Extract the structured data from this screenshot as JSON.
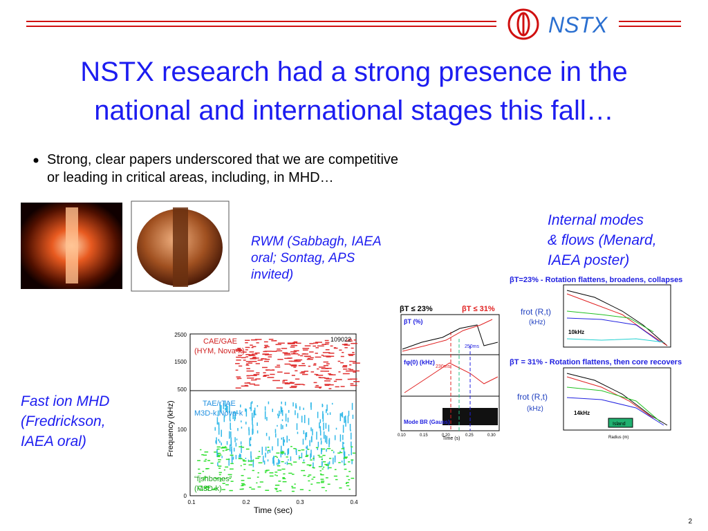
{
  "header": {
    "logo_text": "NSTX",
    "title_lines": [
      "NSTX research had a strong presence in the",
      "national and international stages this fall…"
    ]
  },
  "bullet": {
    "lines": [
      "Strong, clear papers underscored that we are competitive",
      "or leading in critical areas, including, in MHD…"
    ]
  },
  "captions": {
    "rwm": [
      "RWM (Sabbagh, IAEA",
      "oral; Sontag, APS",
      "invited)"
    ],
    "internal": [
      "Internal modes",
      "& flows (Menard,",
      "IAEA poster)"
    ],
    "fast_ion": [
      "Fast ion MHD",
      "(Fredrickson,",
      "IAEA oral)"
    ]
  },
  "spectrogram": {
    "y_axis": "Frequency (kHz)",
    "x_axis": "Time (sec)",
    "shot": "109022",
    "top_ticks": [
      "2500",
      "1500",
      "500"
    ],
    "bottom_ticks": [
      "100",
      "0"
    ],
    "xticks": [
      "0.1",
      "0.2",
      "0.3",
      "0.4"
    ],
    "annotations": [
      "CAE/GAE",
      "(HYM, Nova-k)",
      "TAE/rTAE",
      "M3D-k,Nova-k",
      "“fishbones”",
      "(M3D-k)"
    ]
  },
  "time_traces": {
    "labels": [
      "βT ≤ 23%",
      "βT ≤ 31%",
      "βT (%)",
      "fφ(0) (kHz)",
      "Mode BR (Gauss)",
      "230ms",
      "250ms",
      "Time (s)"
    ],
    "xticks": [
      "0.10",
      "0.15",
      "0.20",
      "0.25",
      "0.30"
    ]
  },
  "profiles": {
    "top_label": "βT=23% - Rotation flattens, broadens, collapses",
    "bottom_label": "βT = 31% - Rotation flattens, then core recovers",
    "axis_label": "frot (R,t)",
    "unit": "(kHz)",
    "top_note": "10kHz",
    "bottom_note": "14kHz",
    "island": "Island",
    "x_axis": "Radius (m)"
  },
  "page_number": "2"
}
